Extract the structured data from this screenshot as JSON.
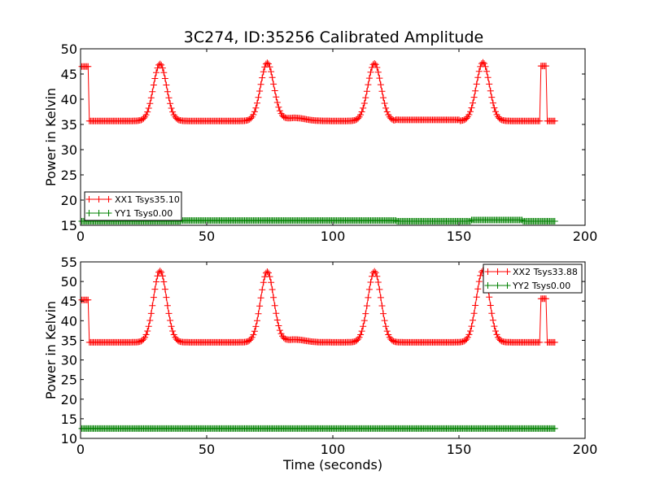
{
  "chart_data": [
    {
      "type": "line",
      "title": "3C274, ID:35256 Calibrated Amplitude",
      "xlabel": "",
      "ylabel": "Power in Kelvin",
      "xlim": [
        0,
        200
      ],
      "ylim": [
        15,
        50
      ],
      "xticks": [
        0,
        50,
        100,
        150,
        200
      ],
      "yticks": [
        15,
        20,
        25,
        30,
        35,
        40,
        45,
        50
      ],
      "legend_position": "lower-left",
      "grid": false,
      "marker": "+",
      "series": [
        {
          "name": "XX1 Tsys35.10",
          "color": "#ff0000",
          "baseline": 35.7,
          "x_start": 0.5,
          "x_end": 188,
          "step": 0.5,
          "segments": [
            {
              "x": [
                0.5,
                3
              ],
              "value": 46.5
            },
            {
              "x": [
                182.5,
                184.5
              ],
              "value": 46.6
            }
          ],
          "peaks": [
            {
              "x": 31.5,
              "y": 47.0,
              "width": 2.6
            },
            {
              "x": 74,
              "y": 47.2,
              "width": 2.6
            },
            {
              "x": 116.5,
              "y": 47.1,
              "width": 2.6
            },
            {
              "x": 159.5,
              "y": 47.3,
              "width": 2.6
            }
          ],
          "bumps": [
            {
              "x": 85,
              "y": 36.3,
              "width": 4
            }
          ],
          "plateaus": [
            {
              "x": [
                125,
                150
              ],
              "value": 35.9
            }
          ]
        },
        {
          "name": "YY1 Tsys0.00",
          "color": "#008000",
          "baseline": 15.8,
          "x_start": 0.5,
          "x_end": 188,
          "step": 0.5,
          "segments": [],
          "peaks": [],
          "bumps": [],
          "plateaus": [
            {
              "x": [
                40,
                125
              ],
              "value": 15.95
            },
            {
              "x": [
                155,
                175
              ],
              "value": 16.05
            }
          ]
        }
      ]
    },
    {
      "type": "line",
      "title": "",
      "xlabel": "Time (seconds)",
      "ylabel": "Power in Kelvin",
      "xlim": [
        0,
        200
      ],
      "ylim": [
        10,
        55
      ],
      "xticks": [
        0,
        50,
        100,
        150,
        200
      ],
      "yticks": [
        10,
        15,
        20,
        25,
        30,
        35,
        40,
        45,
        50,
        55
      ],
      "legend_position": "upper-right",
      "grid": false,
      "marker": "+",
      "series": [
        {
          "name": "XX2 Tsys33.88",
          "color": "#ff0000",
          "baseline": 34.5,
          "x_start": 0.5,
          "x_end": 188,
          "step": 0.5,
          "segments": [
            {
              "x": [
                0.5,
                3
              ],
              "value": 45.3
            },
            {
              "x": [
                182.5,
                184.5
              ],
              "value": 45.6
            }
          ],
          "peaks": [
            {
              "x": 31.5,
              "y": 52.7,
              "width": 2.6
            },
            {
              "x": 74,
              "y": 52.5,
              "width": 2.6
            },
            {
              "x": 116.5,
              "y": 52.6,
              "width": 2.6
            },
            {
              "x": 159.5,
              "y": 52.8,
              "width": 2.6
            }
          ],
          "bumps": [
            {
              "x": 85,
              "y": 35.2,
              "width": 4
            }
          ],
          "plateaus": []
        },
        {
          "name": "YY2 Tsys0.00",
          "color": "#008000",
          "baseline": 12.5,
          "x_start": 0.5,
          "x_end": 188,
          "step": 0.5,
          "segments": [],
          "peaks": [],
          "bumps": [],
          "plateaus": []
        }
      ]
    }
  ]
}
